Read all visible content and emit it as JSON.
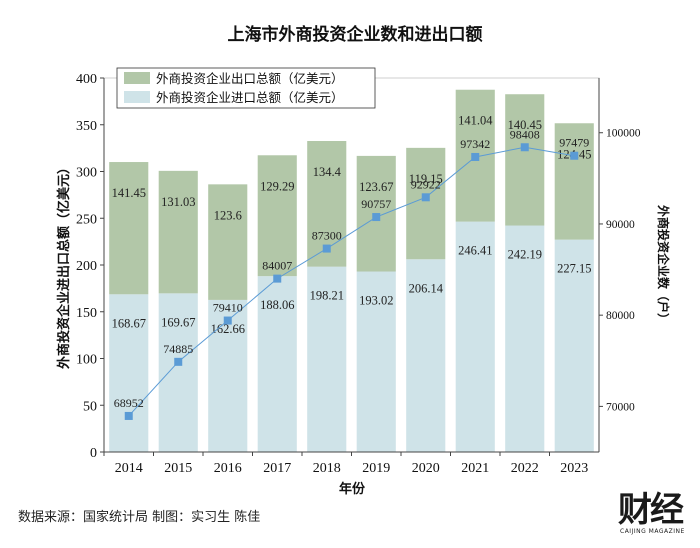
{
  "chart_data": {
    "type": "bar",
    "stacked": true,
    "title": "上海市外商投资企业数和进出口额",
    "xlabel": "年份",
    "ylabel": "外商投资企业进出口总额（亿美元）",
    "y2label": "外商投资企业数（户）",
    "categories": [
      "2014",
      "2015",
      "2016",
      "2017",
      "2018",
      "2019",
      "2020",
      "2021",
      "2022",
      "2023"
    ],
    "ylim": [
      0,
      400
    ],
    "yticks": [
      "0",
      "50",
      "100",
      "150",
      "200",
      "250",
      "300",
      "350",
      "400"
    ],
    "y2lim": [
      65000,
      106000
    ],
    "y2ticks": [
      "70000",
      "80000",
      "90000",
      "100000"
    ],
    "series": [
      {
        "name": "外商投资企业进口总额（亿美元）",
        "color": "#cfe3e8",
        "values": [
          168.67,
          169.67,
          162.66,
          188.06,
          198.21,
          193.02,
          206.14,
          246.41,
          242.19,
          227.15
        ],
        "labels": [
          "168.67",
          "169.67",
          "162.66",
          "188.06",
          "198.21",
          "193.02",
          "206.14",
          "246.41",
          "242.19",
          "227.15"
        ]
      },
      {
        "name": "外商投资企业出口总额（亿美元）",
        "color": "#b2c7a8",
        "values": [
          141.45,
          131.03,
          123.6,
          129.29,
          134.4,
          123.67,
          119.15,
          141.04,
          140.45,
          124.45
        ],
        "labels": [
          "141.45",
          "131.03",
          "123.6",
          "129.29",
          "134.4",
          "123.67",
          "119.15",
          "141.04",
          "140.45",
          "124.45"
        ]
      },
      {
        "name": "外商投资企业数（户）",
        "type": "line",
        "axis": "right",
        "color": "#5b9bd5",
        "values": [
          68952,
          74885,
          79410,
          84007,
          87300,
          90757,
          92922,
          97342,
          98408,
          97479
        ],
        "labels": [
          "68952",
          "74885",
          "79410",
          "84007",
          "87300",
          "90757",
          "92922",
          "97342",
          "98408",
          "97479"
        ]
      }
    ],
    "legend": [
      "外商投资企业出口总额（亿美元）",
      "外商投资企业进口总额（亿美元）"
    ],
    "legend_position": "top-left"
  },
  "footer": {
    "source": "数据来源：国家统计局   制图：实习生 陈佳"
  },
  "logo": {
    "text": "财经",
    "subtext": "CAIJING MAGAZINE"
  }
}
